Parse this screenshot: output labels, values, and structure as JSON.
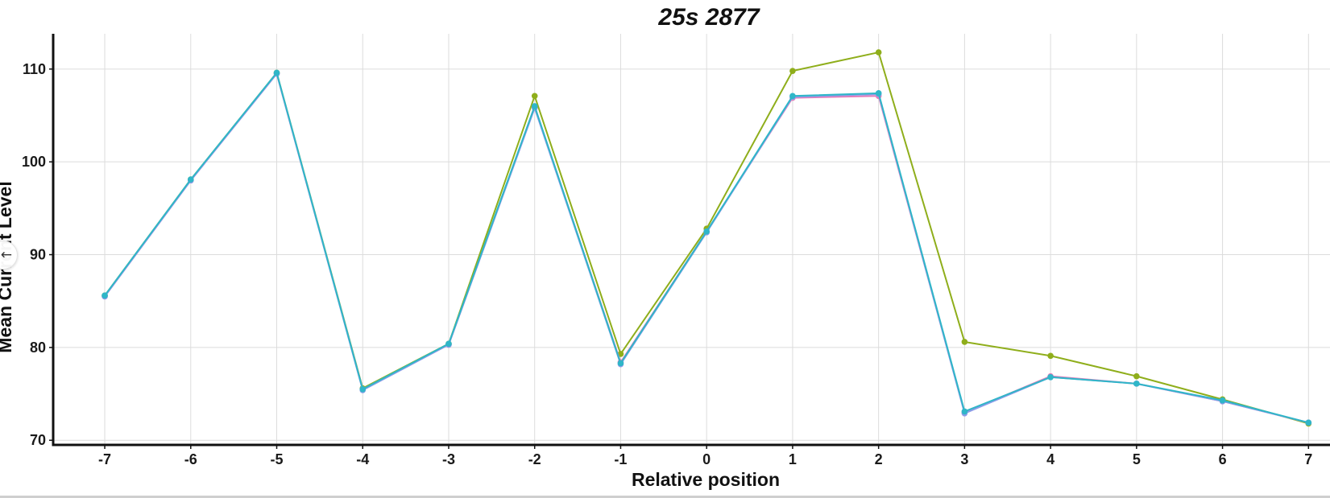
{
  "chart_data": {
    "type": "line",
    "title": "25s 2877",
    "xlabel": "Relative position",
    "ylabel": "Mean Current Level",
    "x": [
      -7,
      -6,
      -5,
      -4,
      -3,
      -2,
      -1,
      0,
      1,
      2,
      3,
      4,
      5,
      6,
      7
    ],
    "xtick_labels": [
      "-7",
      "-6",
      "-5",
      "-4",
      "-3",
      "-2",
      "-1",
      "0",
      "1",
      "2",
      "3",
      "4",
      "5",
      "6",
      "7"
    ],
    "yticks": [
      70,
      80,
      90,
      100,
      110
    ],
    "ytick_labels": [
      "70",
      "80",
      "90",
      "100",
      "110"
    ],
    "ylim": [
      69.5,
      113.8
    ],
    "xlim": [
      -7.6,
      7.25
    ],
    "grid": true,
    "series": [
      {
        "color": "#8fae1b",
        "values": [
          85.6,
          98.1,
          109.6,
          75.6,
          80.4,
          107.1,
          79.3,
          92.8,
          109.8,
          111.8,
          80.6,
          79.1,
          76.9,
          74.4,
          71.8
        ]
      },
      {
        "color": "#e57bb8",
        "values": [
          85.5,
          98.0,
          109.5,
          75.5,
          80.3,
          105.9,
          78.4,
          92.5,
          106.9,
          107.1,
          73.0,
          76.9,
          76.1,
          74.2,
          71.9
        ]
      },
      {
        "color": "#8b9ce8",
        "values": [
          85.5,
          98.0,
          109.5,
          75.4,
          80.3,
          105.8,
          78.2,
          92.4,
          107.0,
          107.3,
          72.9,
          76.8,
          76.1,
          74.2,
          71.9
        ]
      },
      {
        "color": "#2fb6c8",
        "values": [
          85.6,
          98.1,
          109.6,
          75.5,
          80.4,
          106.0,
          78.3,
          92.5,
          107.1,
          107.4,
          73.1,
          76.8,
          76.1,
          74.3,
          71.9
        ]
      }
    ]
  },
  "ui": {
    "back_button_icon": "arrow-left-icon",
    "back_button_glyph": "←"
  }
}
